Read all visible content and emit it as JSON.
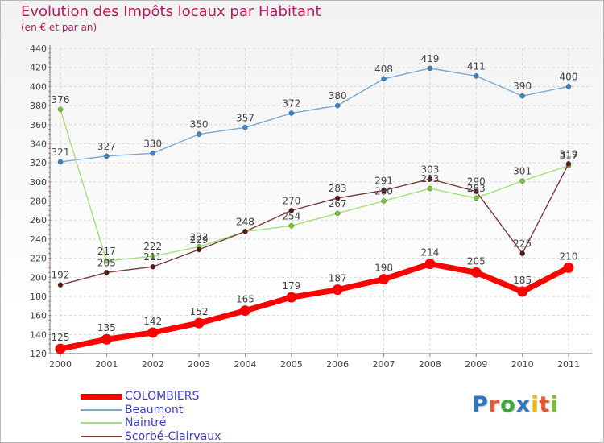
{
  "title": "Evolution des Impôts locaux par Habitant",
  "subtitle": "(en € et par an)",
  "logo": {
    "text": "Proxiti",
    "letter_colors": [
      "#2f74c0",
      "#e8582a",
      "#3aa935",
      "#2f74c0",
      "#f2b600",
      "#e8582a",
      "#7bbf2a"
    ]
  },
  "chart_data": {
    "type": "line",
    "title": "Evolution des Impôts locaux par Habitant",
    "subtitle": "(en € et par an)",
    "x": [
      2000,
      2001,
      2002,
      2003,
      2004,
      2005,
      2006,
      2007,
      2008,
      2009,
      2010,
      2011
    ],
    "ylim": [
      120,
      440
    ],
    "yticks": [
      120,
      140,
      160,
      180,
      200,
      220,
      240,
      260,
      280,
      300,
      320,
      340,
      360,
      380,
      400,
      420,
      440
    ],
    "grid": true,
    "legend_position": "bottom-left",
    "series": [
      {
        "name": "COLOMBIERS",
        "values": [
          125,
          135,
          142,
          152,
          165,
          179,
          187,
          198,
          214,
          205,
          185,
          210
        ],
        "color": "#ff0000",
        "marker": "#ff0000",
        "emphasis": true
      },
      {
        "name": "Beaumont",
        "values": [
          321,
          327,
          330,
          350,
          357,
          372,
          380,
          408,
          419,
          411,
          390,
          400
        ],
        "color": "#77a9d6",
        "marker": "#3d86c6"
      },
      {
        "name": "Naintré",
        "values": [
          376,
          217,
          222,
          232,
          248,
          254,
          267,
          280,
          293,
          283,
          301,
          317
        ],
        "color": "#a5e07a",
        "marker": "#7acb3a"
      },
      {
        "name": "Scorbé-Clairvaux",
        "values": [
          192,
          205,
          211,
          229,
          248,
          270,
          283,
          291,
          303,
          290,
          225,
          319
        ],
        "color": "#7a3a3a",
        "marker": "#5e1515"
      }
    ]
  }
}
